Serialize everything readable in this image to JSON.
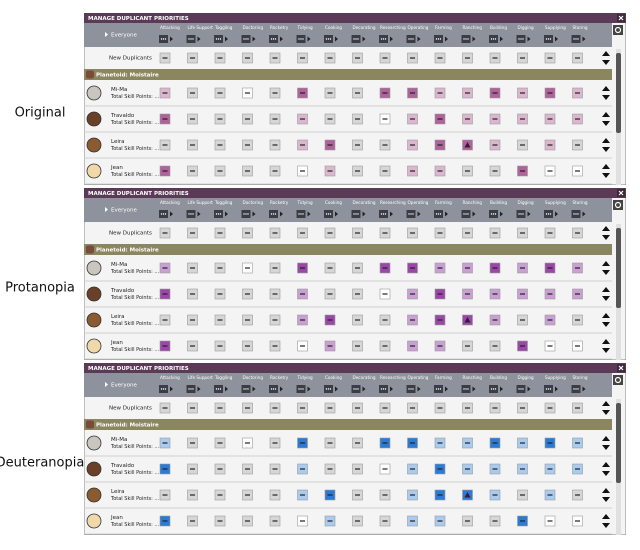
{
  "window_title": "MANAGE DUPLICANT PRIORITIES",
  "everyone": "Everyone",
  "new_duplicants": "New Duplicants",
  "group": "Planetoid: Moistaire",
  "columns": [
    "Attacking",
    "Life Support",
    "Toggling",
    "Doctoring",
    "Rocketry",
    "Tidying",
    "Cooking",
    "Decorating",
    "Researching",
    "Operating",
    "Farming",
    "Ranching",
    "Building",
    "Digging",
    "Supplying",
    "Storing"
  ],
  "rows": [
    {
      "name": "Mi-Ma",
      "subtitle": "Total Skill Points: ...",
      "cells": [
        2,
        0,
        0,
        1,
        0,
        3,
        0,
        0,
        3,
        3,
        2,
        2,
        3,
        2,
        3,
        2
      ]
    },
    {
      "name": "Travaldo",
      "subtitle": "Total Skill Points: ...",
      "cells": [
        3,
        0,
        0,
        0,
        0,
        2,
        0,
        0,
        1,
        2,
        3,
        2,
        2,
        2,
        2,
        2
      ]
    },
    {
      "name": "Leira",
      "subtitle": "Total Skill Points: ...",
      "cells": [
        0,
        0,
        0,
        0,
        0,
        2,
        3,
        0,
        0,
        2,
        3,
        4,
        2,
        0,
        2,
        0
      ]
    },
    {
      "name": "Jean",
      "subtitle": "Total Skill Points: ...",
      "cells": [
        3,
        0,
        0,
        0,
        0,
        1,
        2,
        0,
        0,
        2,
        2,
        0,
        0,
        3,
        1,
        1
      ]
    }
  ],
  "panels": [
    {
      "label": "Original",
      "light": "#dcb6cf",
      "strong": "#b0629a"
    },
    {
      "label": "Protanopia",
      "light": "#caa0d4",
      "strong": "#9a48a8"
    },
    {
      "label": "Deuteranopia",
      "light": "#a9cbef",
      "strong": "#2b7bd6"
    }
  ]
}
